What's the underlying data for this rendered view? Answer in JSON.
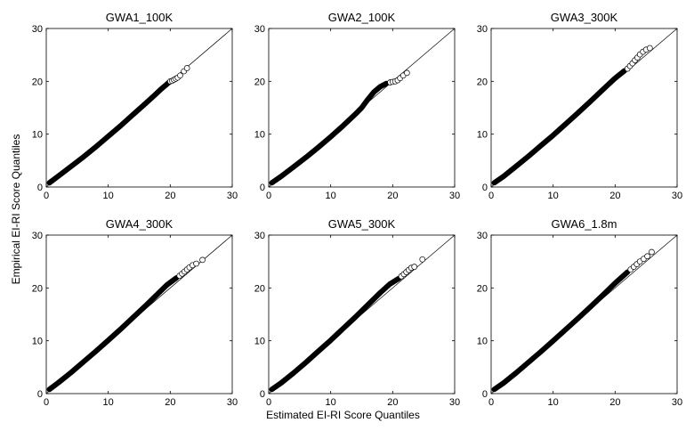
{
  "figure": {
    "xlabel": "Estimated EI-RI Score Quantiles",
    "ylabel": "Empirical EI-RI Score Quantiles"
  },
  "chart_data": [
    {
      "type": "scatter",
      "title": "GWA1_100K",
      "xlim": [
        0,
        30
      ],
      "ylim": [
        0,
        30
      ],
      "xticks": [
        0,
        10,
        20,
        30
      ],
      "yticks": [
        0,
        10,
        20,
        30
      ],
      "reference_line": "y = x",
      "series": [
        {
          "dense_x": [
            0.5,
            2,
            4,
            6,
            8,
            10,
            12,
            14,
            16,
            17.5,
            18.5,
            19.2,
            19.8
          ],
          "dense_y": [
            0.8,
            2.1,
            3.9,
            5.7,
            7.6,
            9.6,
            11.6,
            13.7,
            15.8,
            17.4,
            18.5,
            19.2,
            19.8
          ],
          "outliers_x": [
            20.0,
            20.3,
            20.6,
            20.9,
            21.2,
            21.6,
            22.2,
            22.7
          ],
          "outliers_y": [
            20.0,
            20.1,
            20.3,
            20.5,
            20.7,
            21.1,
            21.9,
            22.5
          ]
        }
      ]
    },
    {
      "type": "scatter",
      "title": "GWA2_100K",
      "xlim": [
        0,
        30
      ],
      "ylim": [
        0,
        30
      ],
      "xticks": [
        0,
        10,
        20,
        30
      ],
      "yticks": [
        0,
        10,
        20,
        30
      ],
      "reference_line": "y = x",
      "series": [
        {
          "dense_x": [
            0.5,
            2,
            4,
            6,
            8,
            10,
            12,
            14,
            15,
            16,
            17,
            18,
            19
          ],
          "dense_y": [
            0.8,
            2.0,
            3.8,
            5.6,
            7.5,
            9.5,
            11.6,
            13.8,
            15.0,
            16.6,
            18.0,
            19.0,
            19.6
          ],
          "outliers_x": [
            19.6,
            20.0,
            20.4,
            20.8,
            21.2,
            21.7,
            22.3
          ],
          "outliers_y": [
            19.8,
            19.9,
            20.0,
            20.2,
            20.6,
            21.1,
            21.6
          ]
        }
      ]
    },
    {
      "type": "scatter",
      "title": "GWA3_300K",
      "xlim": [
        0,
        30
      ],
      "ylim": [
        0,
        30
      ],
      "xticks": [
        0,
        10,
        20,
        30
      ],
      "yticks": [
        0,
        10,
        20,
        30
      ],
      "reference_line": "y = x",
      "series": [
        {
          "dense_x": [
            0.5,
            2,
            4,
            6,
            8,
            10,
            12,
            14,
            16,
            18,
            20,
            21.5
          ],
          "dense_y": [
            0.8,
            2.0,
            3.9,
            5.8,
            7.8,
            9.8,
            11.9,
            14.0,
            16.2,
            18.4,
            20.6,
            22.0
          ],
          "outliers_x": [
            22.0,
            22.4,
            22.8,
            23.2,
            23.6,
            24.0,
            24.5,
            25.0,
            25.6
          ],
          "outliers_y": [
            22.4,
            22.9,
            23.4,
            24.0,
            24.5,
            25.1,
            25.6,
            26.0,
            26.3
          ]
        }
      ]
    },
    {
      "type": "scatter",
      "title": "GWA4_300K",
      "xlim": [
        0,
        30
      ],
      "ylim": [
        0,
        30
      ],
      "xticks": [
        0,
        10,
        20,
        30
      ],
      "yticks": [
        0,
        10,
        20,
        30
      ],
      "reference_line": "y = x",
      "series": [
        {
          "dense_x": [
            0.5,
            2,
            4,
            6,
            8,
            10,
            12,
            14,
            16,
            18,
            19.5,
            21
          ],
          "dense_y": [
            0.8,
            2.1,
            4.0,
            6.0,
            8.0,
            10.1,
            12.2,
            14.4,
            16.6,
            18.9,
            20.6,
            21.9
          ],
          "outliers_x": [
            21.5,
            21.9,
            22.3,
            22.7,
            23.1,
            23.6,
            24.2,
            25.2
          ],
          "outliers_y": [
            22.3,
            22.7,
            23.1,
            23.5,
            23.9,
            24.3,
            24.6,
            25.3
          ]
        }
      ]
    },
    {
      "type": "scatter",
      "title": "GWA5_300K",
      "xlim": [
        0,
        30
      ],
      "ylim": [
        0,
        30
      ],
      "xticks": [
        0,
        10,
        20,
        30
      ],
      "yticks": [
        0,
        10,
        20,
        30
      ],
      "reference_line": "y = x",
      "series": [
        {
          "dense_x": [
            0.5,
            2,
            4,
            6,
            8,
            10,
            12,
            14,
            16,
            18,
            19.5,
            21
          ],
          "dense_y": [
            0.8,
            2.0,
            3.9,
            5.9,
            8.0,
            10.1,
            12.3,
            14.5,
            16.8,
            19.1,
            20.7,
            21.8
          ],
          "outliers_x": [
            21.4,
            21.8,
            22.2,
            22.6,
            23.0,
            23.5,
            24.8
          ],
          "outliers_y": [
            22.2,
            22.6,
            23.0,
            23.4,
            23.8,
            24.0,
            25.4
          ]
        }
      ]
    },
    {
      "type": "scatter",
      "title": "GWA6_1.8m",
      "xlim": [
        0,
        30
      ],
      "ylim": [
        0,
        30
      ],
      "xticks": [
        0,
        10,
        20,
        30
      ],
      "yticks": [
        0,
        10,
        20,
        30
      ],
      "reference_line": "y = x",
      "series": [
        {
          "dense_x": [
            0.5,
            2,
            4,
            6,
            8,
            10,
            12,
            14,
            16,
            18,
            20,
            22
          ],
          "dense_y": [
            0.8,
            2.0,
            3.9,
            5.9,
            7.9,
            10.0,
            12.1,
            14.2,
            16.4,
            18.6,
            20.9,
            23.0
          ],
          "outliers_x": [
            22.5,
            23.0,
            23.5,
            24.0,
            24.6,
            25.2,
            25.9
          ],
          "outliers_y": [
            23.5,
            24.0,
            24.5,
            25.0,
            25.5,
            26.0,
            26.8
          ]
        }
      ]
    }
  ]
}
